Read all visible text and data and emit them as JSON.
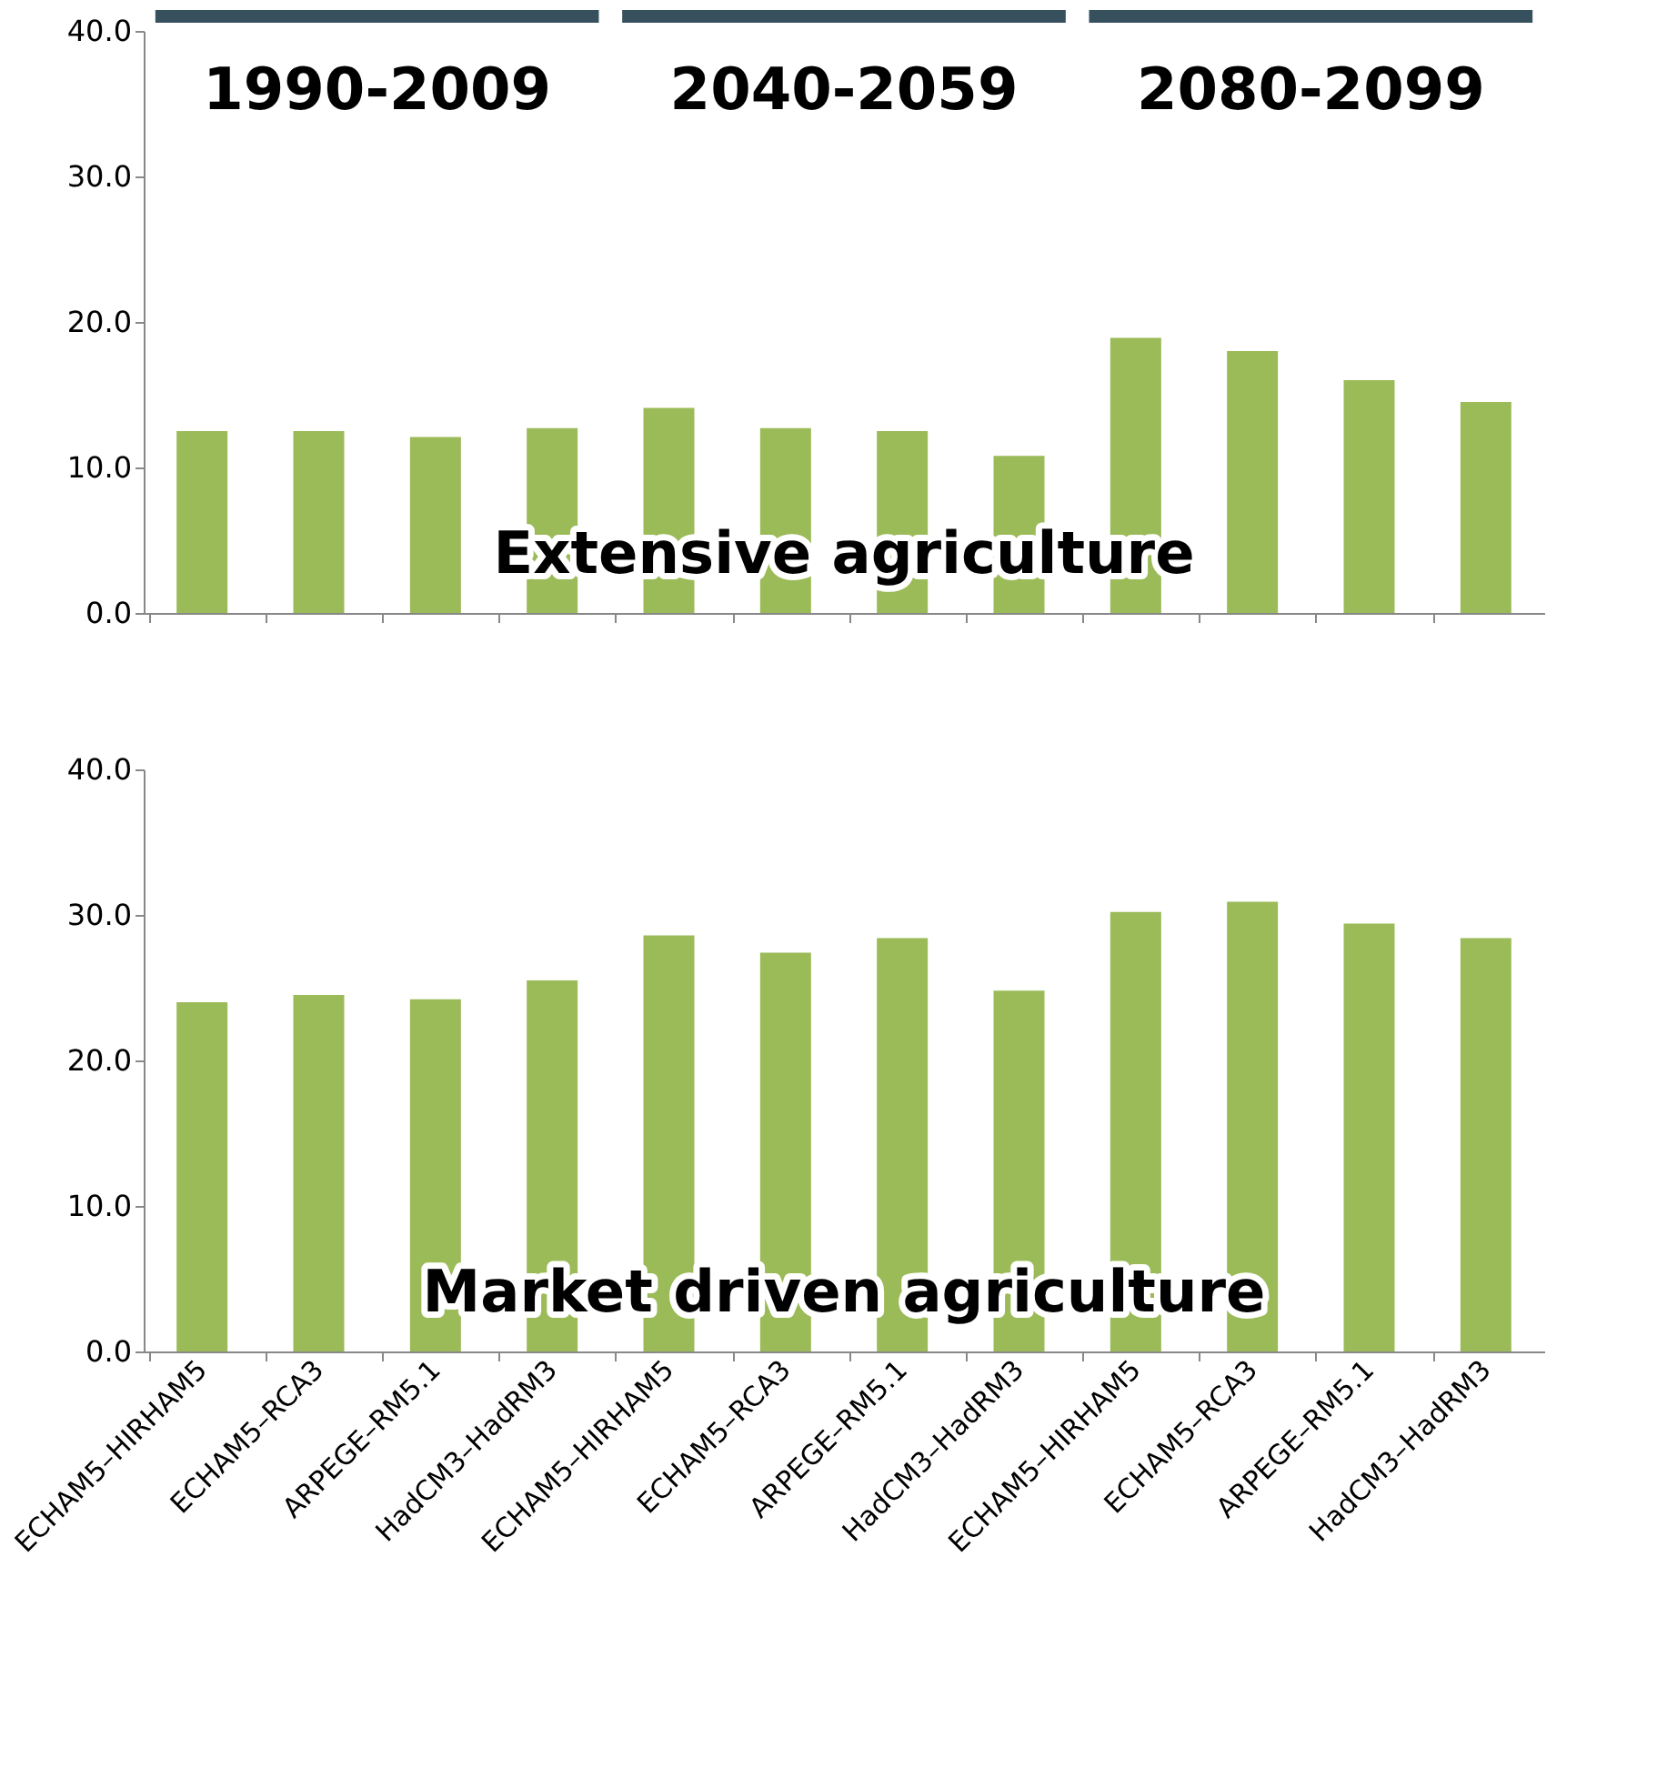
{
  "chart_data": [
    {
      "type": "bar",
      "categories": [
        null,
        null,
        null,
        null,
        null,
        null,
        null,
        null,
        null,
        null,
        null,
        null
      ],
      "values": [
        12.5,
        12.5,
        12.1,
        12.7,
        14.1,
        12.7,
        12.5,
        10.8,
        18.9,
        18.0,
        16.0,
        14.5
      ],
      "color": "#9bbb59",
      "ylim": [
        0,
        40
      ],
      "yticks": [
        {
          "value": 0,
          "label": "0.0"
        },
        {
          "value": 10,
          "label": "10.0"
        },
        {
          "value": 20,
          "label": "20.0"
        },
        {
          "value": 30,
          "label": "30.0"
        },
        {
          "value": 40,
          "label": "40.0"
        }
      ],
      "grid": false,
      "tick_labels": "y",
      "annotations": [
        "1990-2009",
        "2040-2059",
        "2080-2099",
        "Extensive agriculture"
      ]
    },
    {
      "type": "bar",
      "categories": [
        "ECHAM5–HIRHAM5",
        "ECHAM5–RCA3",
        "ARPEGE–RM5.1",
        "HadCM3–HadRM3",
        "ECHAM5–HIRHAM5",
        "ECHAM5–RCA3",
        "ARPEGE–RM5.1",
        "HadCM3–HadRM3",
        "ECHAM5–HIRHAM5",
        "ECHAM5–RCA3",
        "ARPEGE–RM5.1",
        "HadCM3–HadRM3"
      ],
      "values": [
        24.0,
        24.5,
        24.2,
        25.5,
        28.6,
        27.4,
        28.4,
        24.8,
        30.2,
        30.9,
        29.4,
        28.4
      ],
      "color": "#9bbb59",
      "ylim": [
        0,
        40
      ],
      "yticks": [
        {
          "value": 0,
          "label": "0.0"
        },
        {
          "value": 10,
          "label": "10.0"
        },
        {
          "value": 20,
          "label": "20.0"
        },
        {
          "value": 30,
          "label": "30.0"
        },
        {
          "value": 40,
          "label": "40.0"
        }
      ],
      "grid": false,
      "annotations": [
        "Market driven agriculture"
      ]
    }
  ]
}
